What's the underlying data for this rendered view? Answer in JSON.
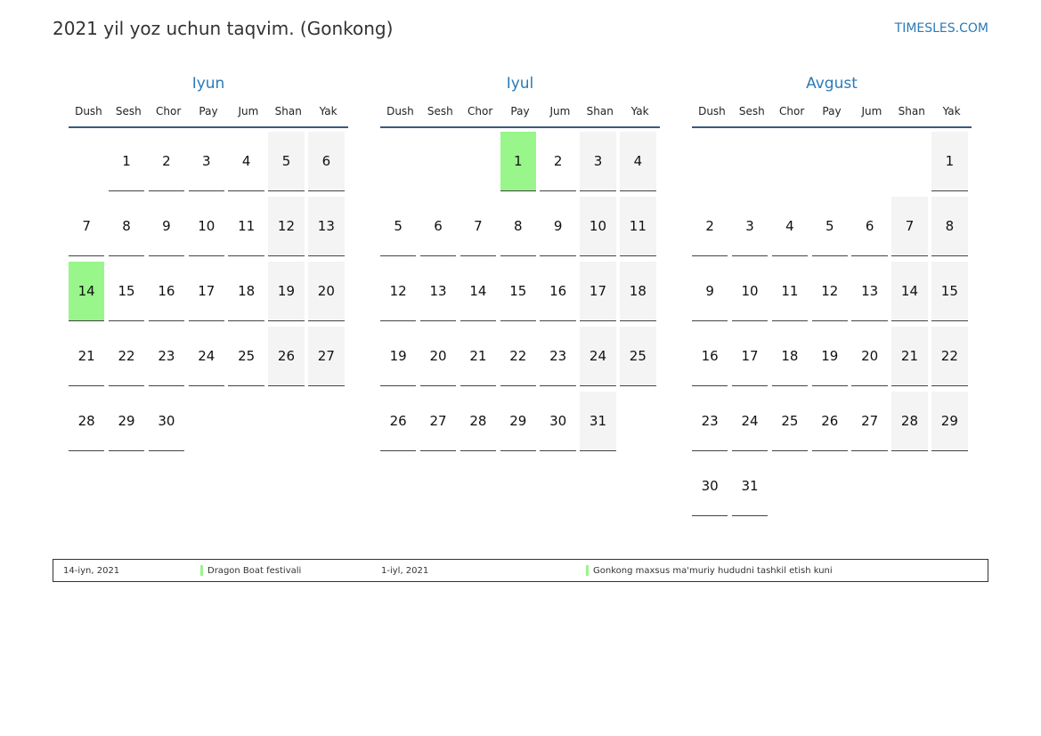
{
  "header": {
    "title": "2021 yil yoz uchun taqvim. (Gonkong)",
    "brand": "TIMESLES.COM"
  },
  "weekdays": [
    "Dush",
    "Sesh",
    "Chor",
    "Pay",
    "Jum",
    "Shan",
    "Yak"
  ],
  "highlight_color": "#98f68a",
  "months": [
    {
      "name": "Iyun",
      "weeks": [
        [
          null,
          1,
          2,
          3,
          4,
          5,
          6
        ],
        [
          7,
          8,
          9,
          10,
          11,
          12,
          13
        ],
        [
          14,
          15,
          16,
          17,
          18,
          19,
          20
        ],
        [
          21,
          22,
          23,
          24,
          25,
          26,
          27
        ],
        [
          28,
          29,
          30,
          null,
          null,
          null,
          null
        ]
      ],
      "highlight": [
        14
      ]
    },
    {
      "name": "Iyul",
      "weeks": [
        [
          null,
          null,
          null,
          1,
          2,
          3,
          4
        ],
        [
          5,
          6,
          7,
          8,
          9,
          10,
          11
        ],
        [
          12,
          13,
          14,
          15,
          16,
          17,
          18
        ],
        [
          19,
          20,
          21,
          22,
          23,
          24,
          25
        ],
        [
          26,
          27,
          28,
          29,
          30,
          31,
          null
        ]
      ],
      "highlight": [
        1
      ]
    },
    {
      "name": "Avgust",
      "weeks": [
        [
          null,
          null,
          null,
          null,
          null,
          null,
          1
        ],
        [
          2,
          3,
          4,
          5,
          6,
          7,
          8
        ],
        [
          9,
          10,
          11,
          12,
          13,
          14,
          15
        ],
        [
          16,
          17,
          18,
          19,
          20,
          21,
          22
        ],
        [
          23,
          24,
          25,
          26,
          27,
          28,
          29
        ],
        [
          30,
          31,
          null,
          null,
          null,
          null,
          null
        ]
      ],
      "highlight": []
    }
  ],
  "holidays": [
    {
      "date": "14-iyn, 2021",
      "name": "Dragon Boat festivali"
    },
    {
      "date": "1-iyl, 2021",
      "name": "Gonkong maxsus ma'muriy hududni tashkil etish kuni"
    }
  ]
}
